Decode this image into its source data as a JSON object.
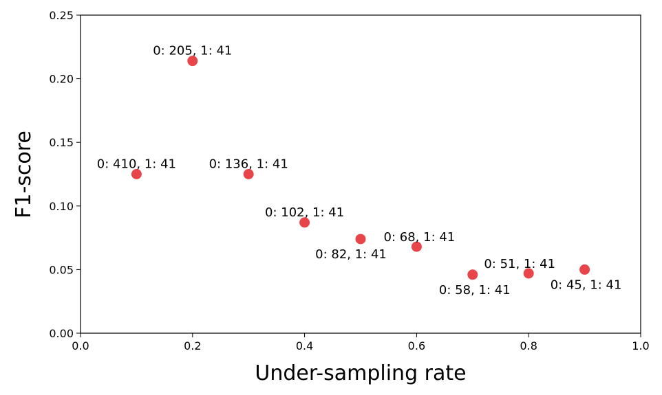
{
  "chart_data": {
    "type": "scatter",
    "xlabel": "Under-sampling rate",
    "ylabel": "F1-score",
    "xlim": [
      0.0,
      1.0
    ],
    "ylim": [
      0.0,
      0.25
    ],
    "xticks": [
      "0.0",
      "0.2",
      "0.4",
      "0.6",
      "0.8",
      "1.0"
    ],
    "yticks": [
      "0.00",
      "0.05",
      "0.10",
      "0.15",
      "0.20",
      "0.25"
    ],
    "grid": false,
    "marker_color": "#e8454a",
    "points": [
      {
        "x": 0.1,
        "y": 0.125,
        "label": "0: 410, 1: 41",
        "label_pos": "above"
      },
      {
        "x": 0.2,
        "y": 0.214,
        "label": "0: 205, 1: 41",
        "label_pos": "above"
      },
      {
        "x": 0.3,
        "y": 0.125,
        "label": "0: 136, 1: 41",
        "label_pos": "above"
      },
      {
        "x": 0.4,
        "y": 0.087,
        "label": "0: 102, 1: 41",
        "label_pos": "above"
      },
      {
        "x": 0.5,
        "y": 0.074,
        "label": "0: 82, 1: 41",
        "label_pos": "below"
      },
      {
        "x": 0.6,
        "y": 0.068,
        "label": "0: 68, 1: 41",
        "label_pos": "above"
      },
      {
        "x": 0.7,
        "y": 0.046,
        "label": "0: 58, 1: 41",
        "label_pos": "below"
      },
      {
        "x": 0.8,
        "y": 0.047,
        "label": "0: 51, 1: 41",
        "label_pos": "above"
      },
      {
        "x": 0.9,
        "y": 0.05,
        "label": "0: 45, 1: 41",
        "label_pos": "below"
      }
    ]
  }
}
